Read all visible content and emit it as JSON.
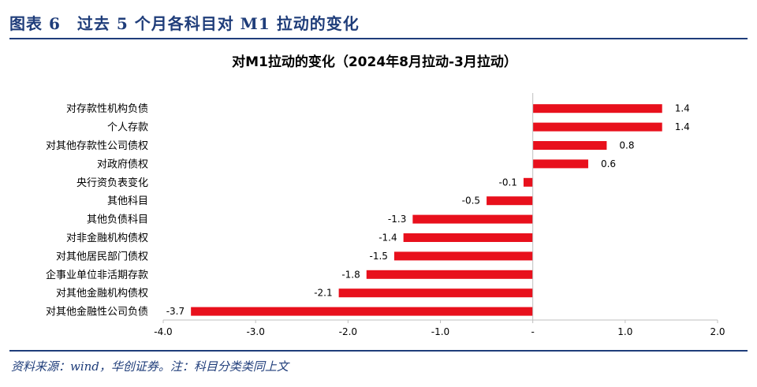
{
  "header": {
    "title": "图表 6　过去 5 个月各科目对 M1 拉动的变化"
  },
  "footer": {
    "source": "资料来源：wind，华创证券。注：科目分类类同上文"
  },
  "chart_data": {
    "type": "bar",
    "orientation": "horizontal",
    "title": "对M1拉动的变化（2024年8月拉动-3月拉动）",
    "xlabel": "",
    "ylabel": "",
    "categories": [
      "对存款性机构负债",
      "个人存款",
      "对其他存款性公司债权",
      "对政府债权",
      "央行资负表变化",
      "其他科目",
      "其他负债科目",
      "对非金融机构债权",
      "对其他居民部门债权",
      "企事业单位非活期存款",
      "对其他金融机构债权",
      "对其他金融性公司负债"
    ],
    "values": [
      1.4,
      1.4,
      0.8,
      0.6,
      -0.1,
      -0.5,
      -1.3,
      -1.4,
      -1.5,
      -1.8,
      -2.1,
      -3.7
    ],
    "value_labels": [
      "1.4",
      "1.4",
      "0.8",
      "0.6",
      "-0.1",
      "-0.5",
      "-1.3",
      "-1.4",
      "-1.5",
      "-1.8",
      "-2.1",
      "-3.7"
    ],
    "xlim": [
      -4.0,
      2.0
    ],
    "ticks": [
      -4.0,
      -3.0,
      -2.0,
      -1.0,
      0,
      1.0,
      2.0
    ],
    "tick_labels": [
      "-4.0",
      "-3.0",
      "-2.0",
      "-1.0",
      "-",
      "1.0",
      "2.0"
    ],
    "bar_color": "#e8101c",
    "grid": false,
    "legend": "none"
  }
}
